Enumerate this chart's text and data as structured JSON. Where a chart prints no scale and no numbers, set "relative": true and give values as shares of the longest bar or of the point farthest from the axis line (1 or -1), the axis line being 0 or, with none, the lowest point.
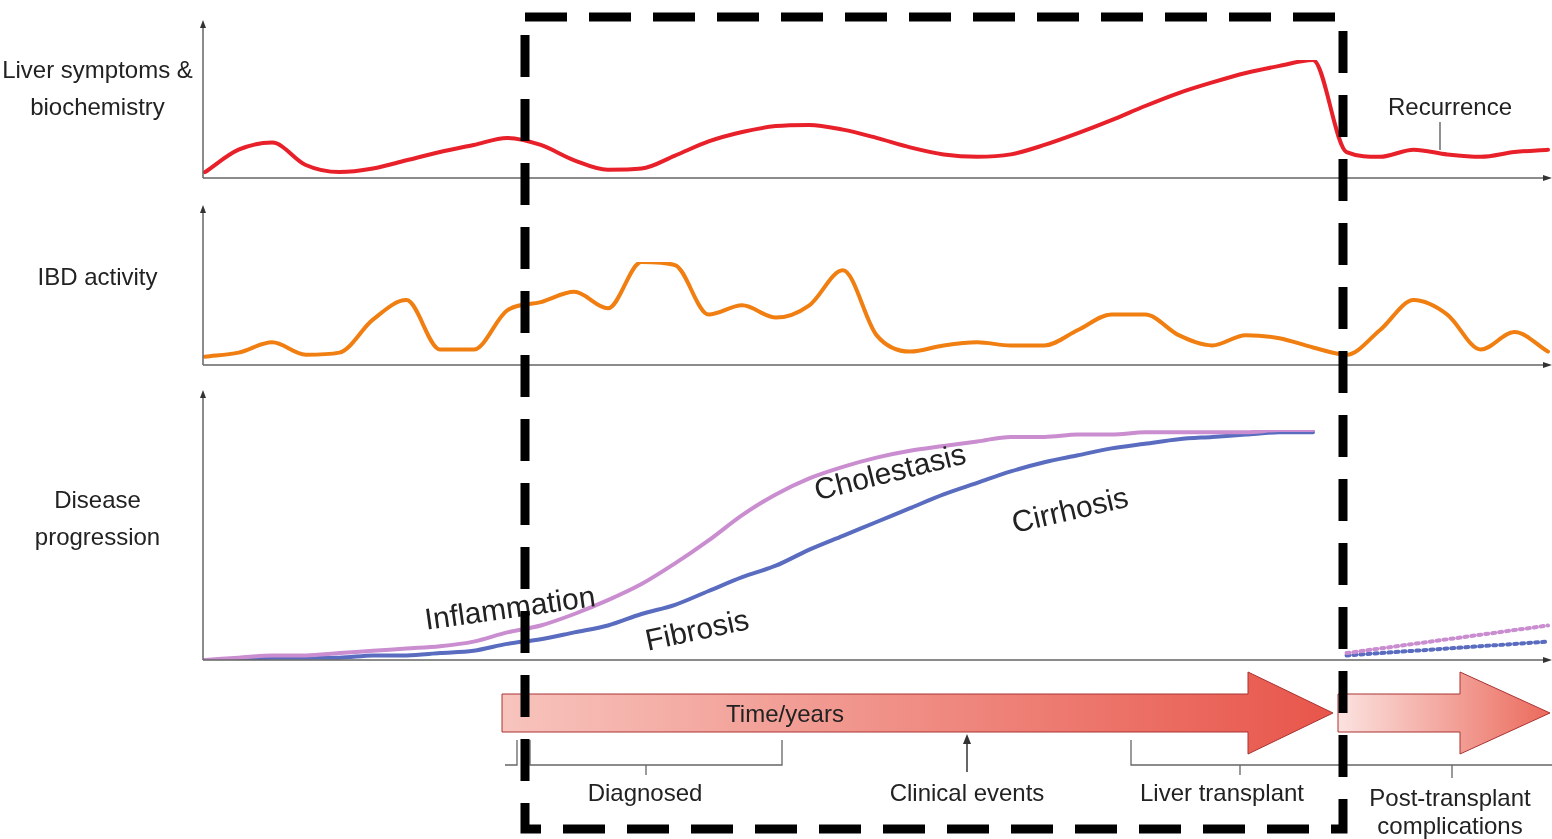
{
  "chart_data": [
    {
      "type": "line",
      "ylabel": "Liver symptoms & biochemistry",
      "relative": true,
      "marker": "none",
      "annotations": [
        "Recurrence"
      ],
      "categories": [
        null,
        null,
        null,
        null,
        null,
        null,
        null,
        null,
        null,
        null,
        null,
        null,
        null,
        null,
        null,
        null,
        null,
        null,
        null,
        null,
        null,
        null,
        null,
        null,
        null,
        null,
        null,
        null,
        null,
        null,
        null,
        null,
        null,
        null,
        null,
        null,
        null,
        null,
        null,
        null,
        null
      ],
      "series": [
        {
          "color": "#e8202a",
          "line_style": "solid",
          "values": [
            0.05,
            0.24,
            0.3,
            0.11,
            0.05,
            0.08,
            0.15,
            0.22,
            0.28,
            0.34,
            0.28,
            0.15,
            0.07,
            0.08,
            0.19,
            0.31,
            0.39,
            0.44,
            0.45,
            0.41,
            0.34,
            0.26,
            0.2,
            0.18,
            0.2,
            0.28,
            0.38,
            0.49,
            0.61,
            0.72,
            0.81,
            0.89,
            0.95,
            1.0,
            0.22,
            0.18,
            0.24,
            0.2,
            0.18,
            0.22,
            0.24
          ]
        }
      ]
    },
    {
      "type": "line",
      "ylabel": "IBD activity",
      "relative": true,
      "marker": "none",
      "categories": [
        null,
        null,
        null,
        null,
        null,
        null,
        null,
        null,
        null,
        null,
        null,
        null,
        null,
        null,
        null,
        null,
        null,
        null,
        null,
        null,
        null,
        null,
        null,
        null,
        null,
        null,
        null,
        null,
        null,
        null,
        null,
        null,
        null,
        null,
        null,
        null,
        null,
        null,
        null,
        null,
        null
      ],
      "series": [
        {
          "color": "#f07e10",
          "line_style": "solid",
          "values": [
            0.08,
            0.12,
            0.22,
            0.1,
            0.12,
            0.44,
            0.63,
            0.15,
            0.15,
            0.53,
            0.61,
            0.71,
            0.55,
            1.0,
            0.97,
            0.49,
            0.58,
            0.46,
            0.58,
            0.92,
            0.29,
            0.13,
            0.19,
            0.22,
            0.19,
            0.19,
            0.34,
            0.49,
            0.49,
            0.29,
            0.19,
            0.29,
            0.26,
            0.17,
            0.1,
            0.34,
            0.63,
            0.49,
            0.15,
            0.32,
            0.13
          ]
        }
      ]
    },
    {
      "type": "line",
      "ylabel": "Disease progression",
      "relative": true,
      "marker": "none",
      "annotations": [
        "Inflammation",
        "Fibrosis",
        "Cholestasis",
        "Cirrhosis",
        "Time/years",
        "Diagnosed",
        "Clinical events",
        "Liver transplant",
        "Post-transplant complications"
      ],
      "categories": [
        null,
        null,
        null,
        null,
        null,
        null,
        null,
        null,
        null,
        null,
        null,
        null,
        null,
        null,
        null,
        null,
        null,
        null,
        null,
        null,
        null,
        null,
        null,
        null,
        null,
        null,
        null,
        null,
        null,
        null,
        null,
        null,
        null,
        null,
        null,
        null,
        null,
        null,
        null,
        null,
        null
      ],
      "series": [
        {
          "color": "#c98dd0",
          "line_style": "solid",
          "values": [
            0.0,
            0.01,
            0.02,
            0.02,
            0.03,
            0.04,
            0.05,
            0.06,
            0.08,
            0.12,
            0.15,
            0.2,
            0.26,
            0.33,
            0.42,
            0.52,
            0.63,
            0.72,
            0.79,
            0.84,
            0.88,
            0.91,
            0.93,
            0.95,
            0.97,
            0.97,
            0.98,
            0.98,
            0.99,
            0.99,
            0.99,
            0.99,
            1.0,
            1.0,
            null,
            null,
            null,
            null,
            null,
            null,
            null
          ]
        },
        {
          "color": "#5a6cc0",
          "line_style": "solid",
          "values": [
            0.0,
            0.0,
            0.01,
            0.01,
            0.01,
            0.02,
            0.02,
            0.03,
            0.04,
            0.07,
            0.09,
            0.12,
            0.15,
            0.2,
            0.24,
            0.3,
            0.36,
            0.41,
            0.48,
            0.54,
            0.6,
            0.66,
            0.72,
            0.77,
            0.82,
            0.86,
            0.89,
            0.92,
            0.94,
            0.96,
            0.97,
            0.98,
            0.99,
            0.99,
            null,
            null,
            null,
            null,
            null,
            null,
            null
          ]
        },
        {
          "color": "#c98dd0",
          "line_style": "dotted",
          "values": [
            null,
            null,
            null,
            null,
            null,
            null,
            null,
            null,
            null,
            null,
            null,
            null,
            null,
            null,
            null,
            null,
            null,
            null,
            null,
            null,
            null,
            null,
            null,
            null,
            null,
            null,
            null,
            null,
            null,
            null,
            null,
            null,
            null,
            null,
            0.03,
            0.05,
            0.07,
            0.09,
            0.11,
            0.13,
            0.15
          ]
        },
        {
          "color": "#5a6cc0",
          "line_style": "dotted",
          "values": [
            null,
            null,
            null,
            null,
            null,
            null,
            null,
            null,
            null,
            null,
            null,
            null,
            null,
            null,
            null,
            null,
            null,
            null,
            null,
            null,
            null,
            null,
            null,
            null,
            null,
            null,
            null,
            null,
            null,
            null,
            null,
            null,
            null,
            null,
            0.02,
            0.03,
            0.04,
            0.05,
            0.06,
            0.07,
            0.08
          ]
        }
      ]
    }
  ]
}
